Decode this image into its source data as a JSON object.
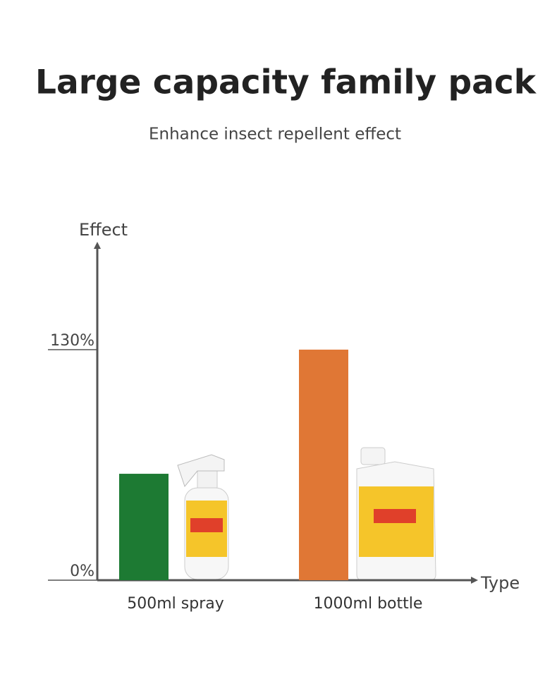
{
  "chart_data": {
    "type": "bar",
    "title": "Large capacity family pack",
    "subtitle": "Enhance insect repellent effect",
    "y_label": "Effect",
    "x_label": "Type",
    "categories": [
      "500ml spray",
      "1000ml bottle"
    ],
    "series": [
      {
        "values": [
          60,
          130
        ],
        "colors": [
          "#1d7a33",
          "#e07735"
        ]
      }
    ],
    "ylim": [
      0,
      190
    ],
    "yticks": [
      {
        "value": 0,
        "label": "0%"
      },
      {
        "value": 130,
        "label": "130%"
      }
    ]
  }
}
